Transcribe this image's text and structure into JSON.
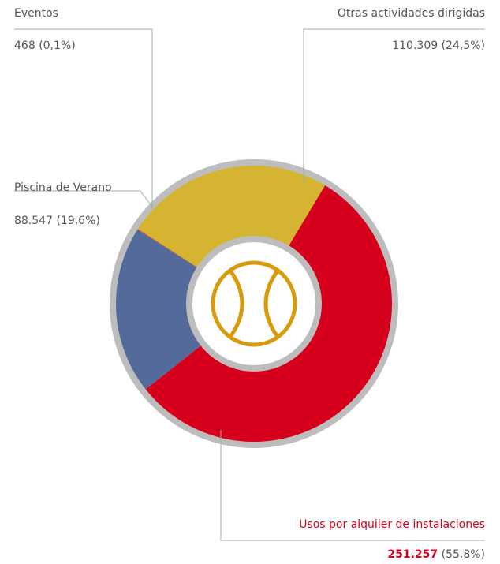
{
  "chart_data": {
    "type": "donut",
    "categories": [
      "Usos por alquiler de instalaciones",
      "Piscina de Verano",
      "Eventos",
      "Otras actividades dirigidas"
    ],
    "values": [
      251257,
      88547,
      468,
      110309
    ],
    "value_labels": [
      "251.257",
      "88.547",
      "468",
      "110.309"
    ],
    "percent_labels": [
      "(55,8%)",
      "(19,6%)",
      "(0,1%)",
      "(24,5%)"
    ],
    "colors": [
      "#d6001c",
      "#536a9a",
      "#e05a1a",
      "#d4b431"
    ]
  }
}
